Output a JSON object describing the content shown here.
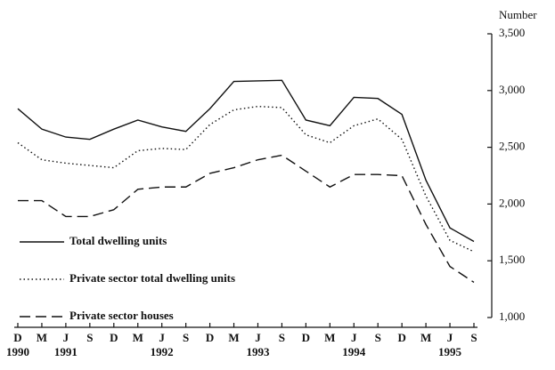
{
  "chart_data": {
    "type": "line",
    "y_axis_label": "Number",
    "categories": [
      "D",
      "M",
      "J",
      "S",
      "D",
      "M",
      "J",
      "S",
      "D",
      "M",
      "J",
      "S",
      "D",
      "M",
      "J",
      "S",
      "D",
      "M",
      "J",
      "S"
    ],
    "year_labels": [
      "1990",
      null,
      "1991",
      null,
      null,
      null,
      "1992",
      null,
      null,
      null,
      "1993",
      null,
      null,
      null,
      "1994",
      null,
      null,
      null,
      "1995",
      null
    ],
    "ylim": [
      1000,
      3500
    ],
    "yticks": [
      {
        "value": 1000,
        "label": "1,000"
      },
      {
        "value": 1500,
        "label": "1,500"
      },
      {
        "value": 2000,
        "label": "2,000"
      },
      {
        "value": 2500,
        "label": "2,500"
      },
      {
        "value": 3000,
        "label": "3,000"
      },
      {
        "value": 3500,
        "label": "3,500"
      }
    ],
    "series": [
      {
        "name": "Total dwelling units",
        "color": "#111111",
        "dash": "solid",
        "values": [
          2840,
          2660,
          2590,
          2570,
          2660,
          2740,
          2680,
          2640,
          2840,
          3080,
          3085,
          3090,
          2740,
          2690,
          2940,
          2930,
          2790,
          2210,
          1790,
          1670
        ]
      },
      {
        "name": "Private sector total dwelling units",
        "color": "#111111",
        "dash": "dotted",
        "values": [
          2540,
          2390,
          2360,
          2340,
          2320,
          2470,
          2490,
          2480,
          2700,
          2830,
          2860,
          2850,
          2610,
          2540,
          2690,
          2750,
          2570,
          2070,
          1680,
          1580
        ]
      },
      {
        "name": "Private sector houses",
        "color": "#111111",
        "dash": "dashed",
        "values": [
          2030,
          2030,
          1890,
          1890,
          1950,
          2130,
          2150,
          2150,
          2270,
          2320,
          2390,
          2430,
          2290,
          2150,
          2260,
          2260,
          2250,
          1820,
          1450,
          1310
        ]
      }
    ]
  }
}
